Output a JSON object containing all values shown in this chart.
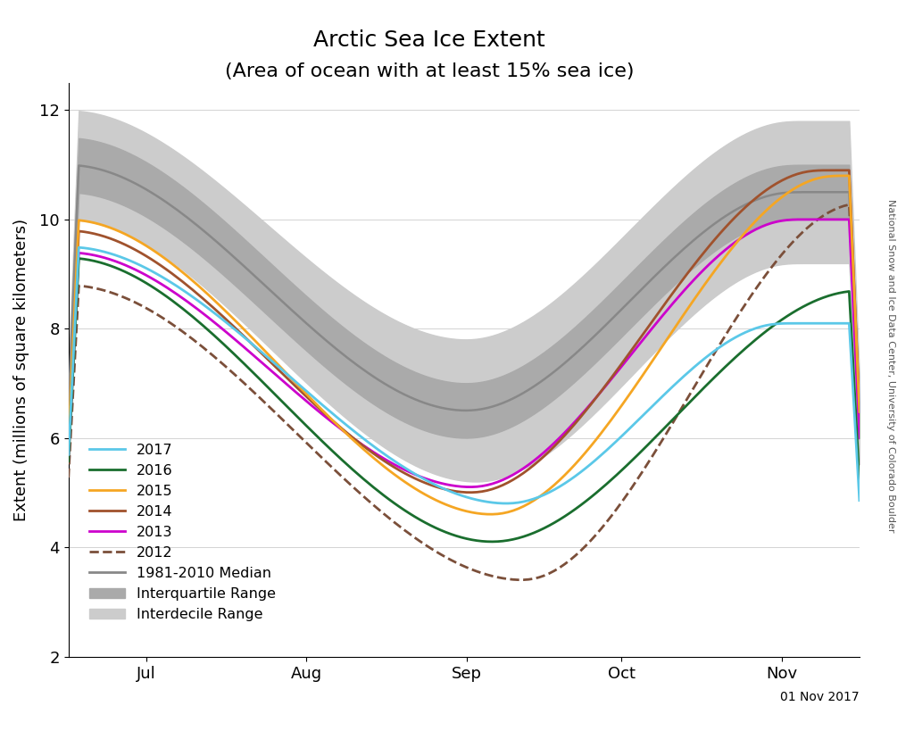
{
  "title_line1": "Arctic Sea Ice Extent",
  "title_line2": "(Area of ocean with at least 15% sea ice)",
  "ylabel": "Extent (millions of square kilometers)",
  "date_label": "01 Nov 2017",
  "watermark": "National Snow and Ice Data Center, University of Colorado Boulder",
  "ylim": [
    2,
    12.5
  ],
  "yticks": [
    2,
    4,
    6,
    8,
    10,
    12
  ],
  "month_labels": [
    "Jul",
    "Aug",
    "Sep",
    "Oct",
    "Nov"
  ],
  "month_ticks": [
    15,
    46,
    77,
    107,
    138
  ],
  "n_days": 154,
  "median_color": "#888888",
  "interquartile_color": "#aaaaaa",
  "interdecile_color": "#cccccc",
  "line_2017_color": "#5bc8e8",
  "line_2016_color": "#1a6e2e",
  "line_2015_color": "#f5a623",
  "line_2014_color": "#a0522d",
  "line_2013_color": "#cc00cc",
  "line_2012_color": "#7b4f3a"
}
